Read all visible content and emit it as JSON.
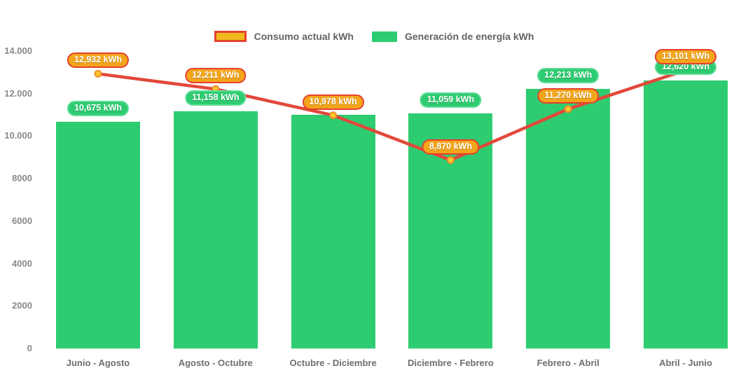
{
  "chart_data": {
    "type": "combo",
    "title": "",
    "categories": [
      "Junio - Agosto",
      "Agosto - Octubre",
      "Octubre - Diciembre",
      "Diciembre - Febrero",
      "Febrero - Abril",
      "Abril - Junio"
    ],
    "series": [
      {
        "name": "Consumo actual kWh",
        "type": "line",
        "color": "#E2483A",
        "marker_fill": "#FFC52F",
        "marker_stroke": "#EE8F26",
        "label_bg": "#F3A51B",
        "label_border": "#E5402E",
        "values": [
          12932,
          12211,
          10978,
          8870,
          11270,
          13101
        ],
        "labels": [
          "12,932 kWh",
          "12,211 kWh",
          "10,978 kWh",
          "8,870 kWh",
          "11,270 kWh",
          "13,101 kWh"
        ]
      },
      {
        "name": "Generación de energía kWh",
        "type": "bar",
        "color": "#2ECC71",
        "label_bg": "#2ECC71",
        "label_border": "#5FDD98",
        "values": [
          10675,
          11158,
          11000,
          11059,
          12213,
          12620
        ],
        "labels": [
          "10,675 kWh",
          "11,158 kWh",
          null,
          "11,059 kWh",
          "12,213 kWh",
          "12,620 kWh"
        ]
      }
    ],
    "ylim": [
      0,
      14000
    ],
    "yticks": [
      {
        "value": 0,
        "label": "0"
      },
      {
        "value": 2000,
        "label": "2000"
      },
      {
        "value": 4000,
        "label": "4000"
      },
      {
        "value": 6000,
        "label": "6000"
      },
      {
        "value": 8000,
        "label": "8000"
      },
      {
        "value": 10000,
        "label": "10.000"
      },
      {
        "value": 12000,
        "label": "12.000"
      },
      {
        "value": 14000,
        "label": "14.000"
      }
    ],
    "grid": false,
    "legend_position": "top-center"
  }
}
